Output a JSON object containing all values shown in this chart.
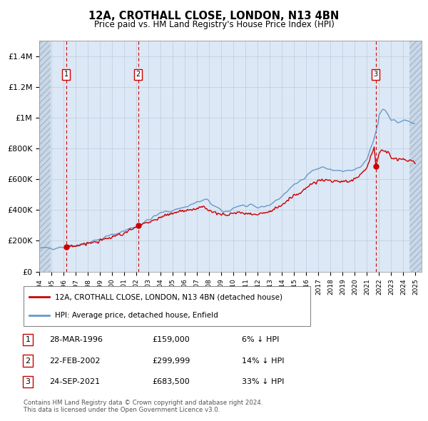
{
  "title": "12A, CROTHALL CLOSE, LONDON, N13 4BN",
  "subtitle": "Price paid vs. HM Land Registry's House Price Index (HPI)",
  "ylim": [
    0,
    1500000
  ],
  "yticks": [
    0,
    200000,
    400000,
    600000,
    800000,
    1000000,
    1200000,
    1400000
  ],
  "ytick_labels": [
    "£0",
    "£200K",
    "£400K",
    "£600K",
    "£800K",
    "£1M",
    "£1.2M",
    "£1.4M"
  ],
  "xmin": 1994.0,
  "xmax": 2025.5,
  "hatch_left_end": 1994.92,
  "hatch_right_start": 2024.5,
  "sale_dates": [
    1996.22,
    2002.14,
    2021.73
  ],
  "sale_prices": [
    159000,
    299999,
    683500
  ],
  "sale_labels": [
    "1",
    "2",
    "3"
  ],
  "legend_house": "12A, CROTHALL CLOSE, LONDON, N13 4BN (detached house)",
  "legend_hpi": "HPI: Average price, detached house, Enfield",
  "table_rows": [
    {
      "num": "1",
      "date": "28-MAR-1996",
      "price": "£159,000",
      "hpi": "6% ↓ HPI"
    },
    {
      "num": "2",
      "date": "22-FEB-2002",
      "price": "£299,999",
      "hpi": "14% ↓ HPI"
    },
    {
      "num": "3",
      "date": "24-SEP-2021",
      "price": "£683,500",
      "hpi": "33% ↓ HPI"
    }
  ],
  "footer": "Contains HM Land Registry data © Crown copyright and database right 2024.\nThis data is licensed under the Open Government Licence v3.0.",
  "house_color": "#cc0000",
  "hpi_color": "#6699cc",
  "grid_color": "#bbccdd",
  "bg_color": "#dce8f5",
  "dashed_color": "#cc0000"
}
